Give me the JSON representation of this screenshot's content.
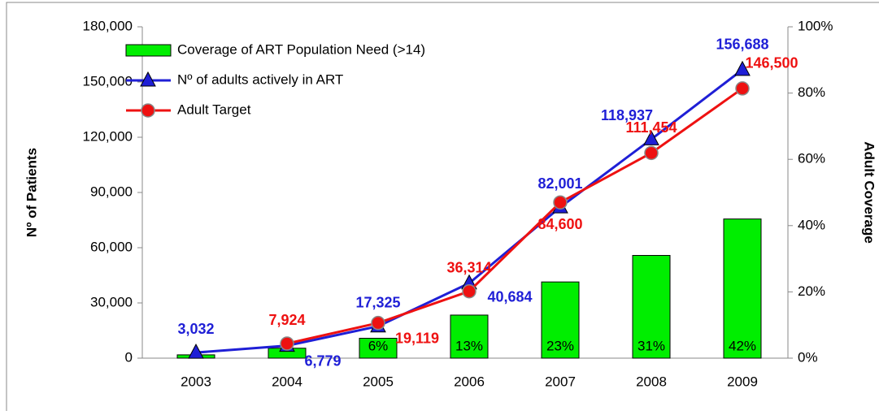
{
  "chart_data": {
    "type": "bar+line",
    "categories": [
      "2003",
      "2004",
      "2005",
      "2006",
      "2007",
      "2008",
      "2009"
    ],
    "ylabel": "Nº of Patients",
    "y2label": "Adult Coverage",
    "ylim": [
      0,
      180000
    ],
    "yticks": [
      0,
      {
        "value": 30000,
        "label": "30,000"
      },
      {
        "value": 60000,
        "label": "60,000"
      },
      {
        "value": 90000,
        "label": "90,000"
      },
      {
        "value": 120000,
        "label": "120,000"
      },
      {
        "value": 150000,
        "label": "150,000"
      },
      {
        "value": 180000,
        "label": "180,000"
      }
    ],
    "y2lim": [
      0,
      100
    ],
    "y2ticks": [
      {
        "value": 0,
        "label": "0%"
      },
      {
        "value": 20,
        "label": "20%"
      },
      {
        "value": 40,
        "label": "40%"
      },
      {
        "value": 60,
        "label": "60%"
      },
      {
        "value": 80,
        "label": "80%"
      },
      {
        "value": 100,
        "label": "100%"
      }
    ],
    "series": [
      {
        "name": "Coverage of ART Population Need (>14)",
        "type": "bar",
        "axis": "y2",
        "color": "#00ee00",
        "values": [
          1,
          3,
          6,
          13,
          23,
          31,
          42
        ],
        "value_labels": [
          null,
          null,
          "6%",
          "13%",
          "23%",
          "31%",
          "42%"
        ]
      },
      {
        "name": "Nº of adults actively in ART",
        "type": "line",
        "color": "#1f1fd6",
        "values": [
          3032,
          6779,
          17325,
          40684,
          82001,
          118937,
          156688
        ],
        "value_labels": [
          "3,032",
          "6,779",
          "17,325",
          "40,684",
          "82,001",
          "118,937",
          "156,688"
        ]
      },
      {
        "name": "Adult Target",
        "type": "line",
        "color": "#ee1111",
        "values": [
          null,
          7924,
          19119,
          36314,
          84600,
          111454,
          146500
        ],
        "value_labels": [
          null,
          "7,924",
          "19,119",
          "36,314",
          "84,600",
          "111,454",
          "146,500"
        ]
      }
    ]
  }
}
